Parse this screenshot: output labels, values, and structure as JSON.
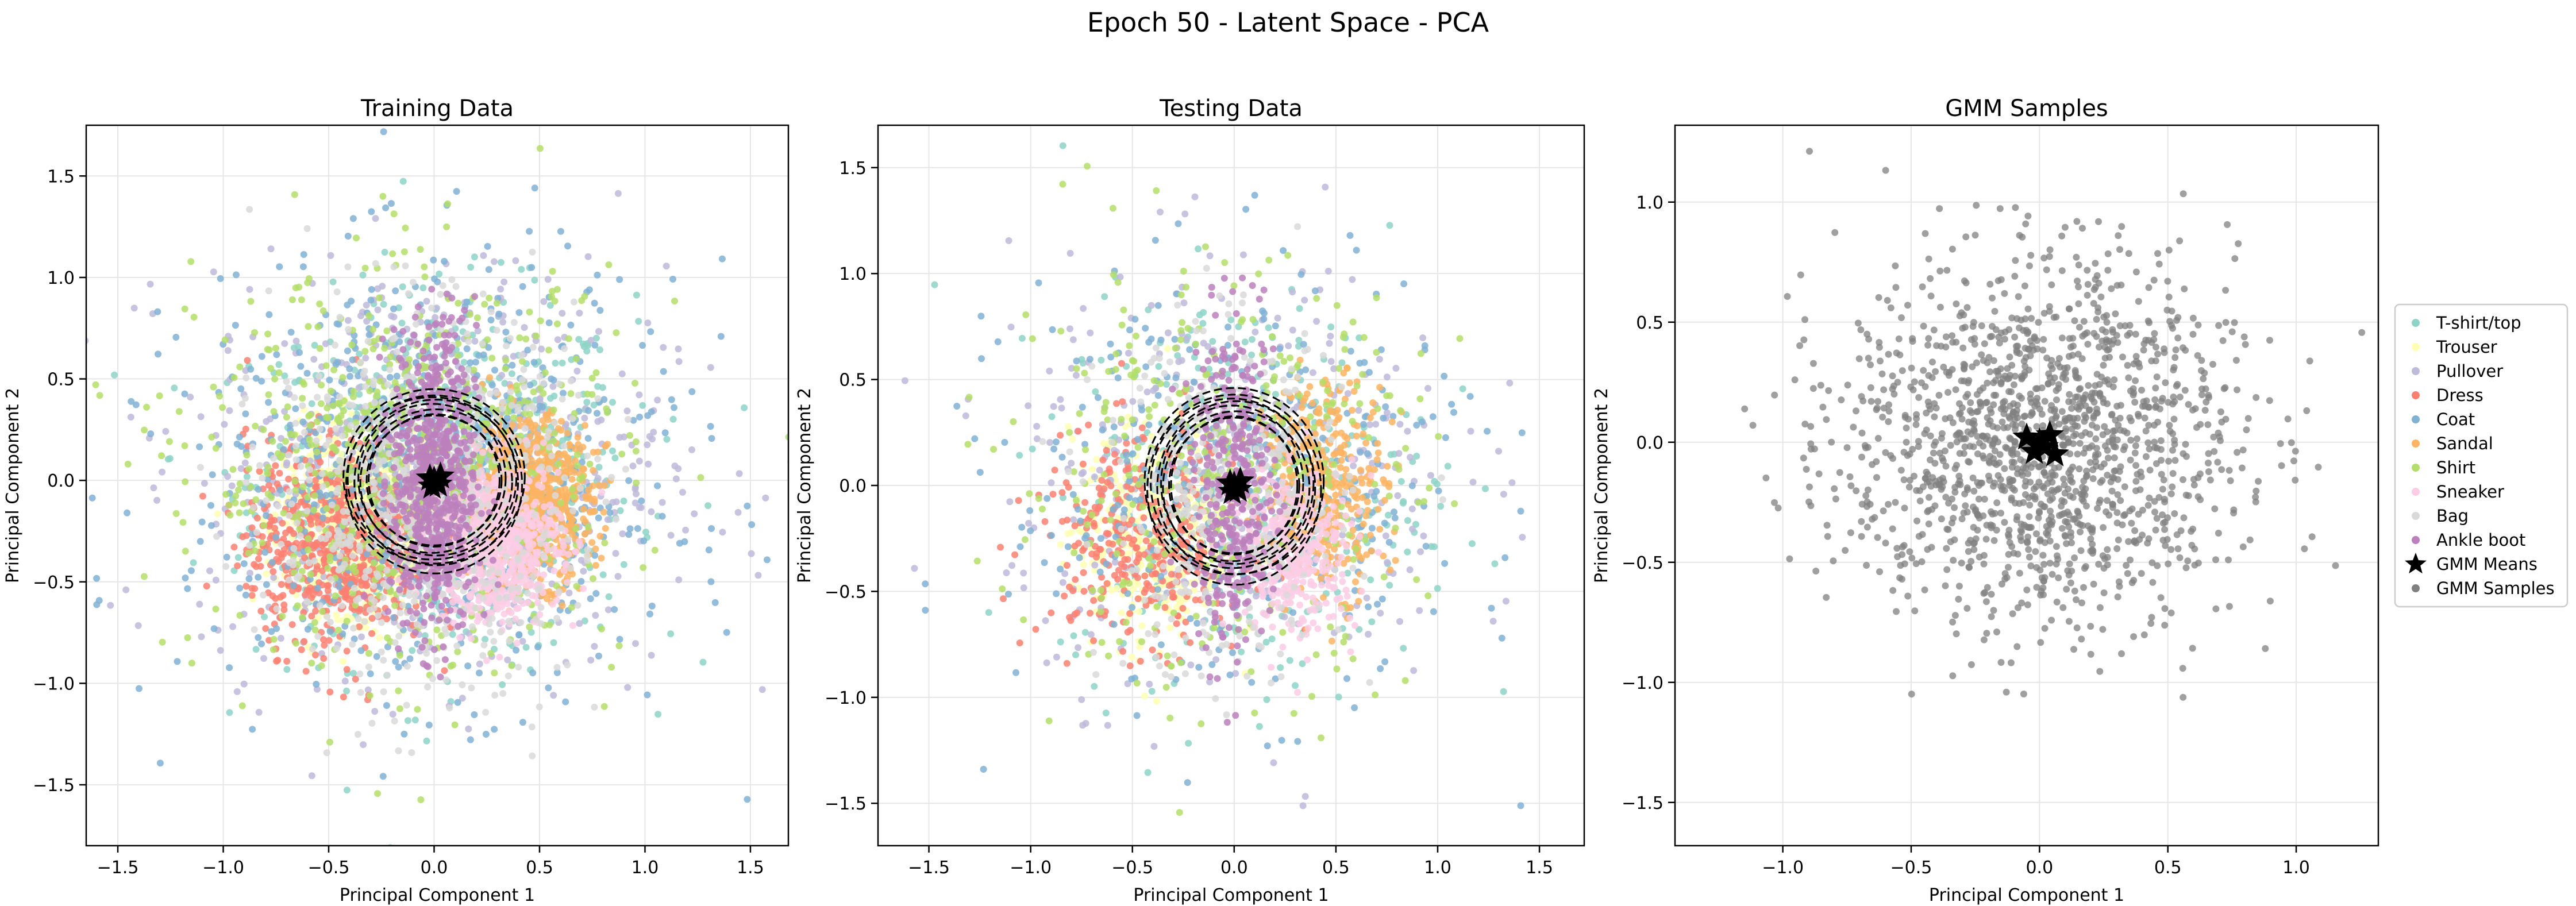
{
  "figure": {
    "title": "Epoch 50 - Latent Space - PCA"
  },
  "legend": {
    "placement": "right of third panel",
    "items": [
      {
        "label": "T-shirt/top",
        "color": "#8dd3c7",
        "marker": "dot"
      },
      {
        "label": "Trouser",
        "color": "#ffffb3",
        "marker": "dot"
      },
      {
        "label": "Pullover",
        "color": "#bebada",
        "marker": "dot"
      },
      {
        "label": "Dress",
        "color": "#fb8072",
        "marker": "dot"
      },
      {
        "label": "Coat",
        "color": "#80b1d3",
        "marker": "dot"
      },
      {
        "label": "Sandal",
        "color": "#fdb462",
        "marker": "dot"
      },
      {
        "label": "Shirt",
        "color": "#b3de69",
        "marker": "dot"
      },
      {
        "label": "Sneaker",
        "color": "#fccde5",
        "marker": "dot"
      },
      {
        "label": "Bag",
        "color": "#d9d9d9",
        "marker": "dot"
      },
      {
        "label": "Ankle boot",
        "color": "#bc80bd",
        "marker": "dot"
      },
      {
        "label": "GMM Means",
        "color": "#000000",
        "marker": "star"
      },
      {
        "label": "GMM Samples",
        "color": "#808080",
        "marker": "dot"
      }
    ]
  },
  "chart_data": [
    {
      "type": "scatter",
      "title": "Training Data",
      "xlabel": "Principal Component 1",
      "ylabel": "Principal Component 2",
      "xlim": [
        -1.65,
        1.68
      ],
      "ylim": [
        -1.8,
        1.75
      ],
      "xticks": [
        -1.5,
        -1.0,
        -0.5,
        0.0,
        0.5,
        1.0,
        1.5
      ],
      "yticks": [
        -1.5,
        -1.0,
        -0.5,
        0.0,
        0.5,
        1.0,
        1.5
      ],
      "grid": true,
      "class_distribution": [
        {
          "class": "T-shirt/top",
          "center": [
            0.05,
            0.0
          ],
          "spread": [
            0.45,
            0.45
          ]
        },
        {
          "class": "Trouser",
          "center": [
            -0.35,
            -0.2
          ],
          "spread": [
            0.18,
            0.22
          ]
        },
        {
          "class": "Pullover",
          "center": [
            0.0,
            0.05
          ],
          "spread": [
            0.55,
            0.5
          ]
        },
        {
          "class": "Dress",
          "center": [
            -0.45,
            -0.3
          ],
          "spread": [
            0.22,
            0.25
          ]
        },
        {
          "class": "Coat",
          "center": [
            0.0,
            0.0
          ],
          "spread": [
            0.58,
            0.52
          ]
        },
        {
          "class": "Sandal",
          "center": [
            0.45,
            -0.1
          ],
          "spread": [
            0.15,
            0.2
          ]
        },
        {
          "class": "Shirt",
          "center": [
            -0.1,
            0.05
          ],
          "spread": [
            0.5,
            0.48
          ]
        },
        {
          "class": "Sneaker",
          "center": [
            0.3,
            -0.3
          ],
          "spread": [
            0.15,
            0.2
          ]
        },
        {
          "class": "Bag",
          "center": [
            -0.05,
            -0.1
          ],
          "spread": [
            0.35,
            0.45
          ]
        },
        {
          "class": "Ankle boot",
          "center": [
            0.0,
            0.0
          ],
          "spread": [
            0.1,
            0.38
          ]
        }
      ],
      "gmm_means": [
        [
          0.0,
          0.0
        ],
        [
          0.02,
          -0.02
        ],
        [
          -0.02,
          0.01
        ],
        [
          0.03,
          0.02
        ],
        [
          -0.01,
          -0.03
        ]
      ],
      "gmm_ellipse_radii": [
        0.32,
        0.36,
        0.4,
        0.43
      ]
    },
    {
      "type": "scatter",
      "title": "Testing Data",
      "xlabel": "Principal Component 1",
      "ylabel": "Principal Component 2",
      "xlim": [
        -1.75,
        1.72
      ],
      "ylim": [
        -1.7,
        1.7
      ],
      "xticks": [
        -1.5,
        -1.0,
        -0.5,
        0.0,
        0.5,
        1.0,
        1.5
      ],
      "yticks": [
        -1.5,
        -1.0,
        -0.5,
        0.0,
        0.5,
        1.0,
        1.5
      ],
      "grid": true,
      "class_distribution": [
        {
          "class": "T-shirt/top",
          "center": [
            0.05,
            0.0
          ],
          "spread": [
            0.45,
            0.45
          ]
        },
        {
          "class": "Trouser",
          "center": [
            -0.4,
            -0.25
          ],
          "spread": [
            0.2,
            0.25
          ]
        },
        {
          "class": "Pullover",
          "center": [
            0.0,
            0.05
          ],
          "spread": [
            0.55,
            0.5
          ]
        },
        {
          "class": "Dress",
          "center": [
            -0.45,
            -0.25
          ],
          "spread": [
            0.25,
            0.25
          ]
        },
        {
          "class": "Coat",
          "center": [
            0.0,
            0.0
          ],
          "spread": [
            0.55,
            0.5
          ]
        },
        {
          "class": "Sandal",
          "center": [
            0.45,
            0.0
          ],
          "spread": [
            0.15,
            0.25
          ]
        },
        {
          "class": "Shirt",
          "center": [
            -0.1,
            0.05
          ],
          "spread": [
            0.5,
            0.48
          ]
        },
        {
          "class": "Sneaker",
          "center": [
            0.3,
            -0.3
          ],
          "spread": [
            0.15,
            0.2
          ]
        },
        {
          "class": "Bag",
          "center": [
            -0.05,
            -0.1
          ],
          "spread": [
            0.3,
            0.4
          ]
        },
        {
          "class": "Ankle boot",
          "center": [
            0.0,
            0.0
          ],
          "spread": [
            0.1,
            0.38
          ]
        }
      ],
      "gmm_means": [
        [
          0.0,
          0.0
        ],
        [
          0.02,
          -0.02
        ],
        [
          -0.02,
          0.01
        ],
        [
          0.03,
          0.02
        ],
        [
          -0.01,
          -0.03
        ]
      ],
      "gmm_ellipse_radii": [
        0.32,
        0.36,
        0.4,
        0.44
      ]
    },
    {
      "type": "scatter",
      "title": "GMM Samples",
      "xlabel": "Principal Component 1",
      "ylabel": "Principal Component 2",
      "xlim": [
        -1.42,
        1.32
      ],
      "ylim": [
        -1.68,
        1.32
      ],
      "xticks": [
        -1.0,
        -0.5,
        0.0,
        0.5,
        1.0
      ],
      "yticks": [
        -1.5,
        -1.0,
        -0.5,
        0.0,
        0.5,
        1.0
      ],
      "grid": true,
      "samples": {
        "count": 1500,
        "center": [
          0.0,
          0.0
        ],
        "spread": [
          0.38,
          0.38
        ],
        "color": "#808080"
      },
      "gmm_means": [
        [
          0.0,
          0.0
        ],
        [
          0.02,
          -0.02
        ],
        [
          -0.05,
          0.02
        ],
        [
          0.04,
          0.03
        ],
        [
          -0.02,
          -0.04
        ],
        [
          0.06,
          -0.05
        ]
      ]
    }
  ]
}
